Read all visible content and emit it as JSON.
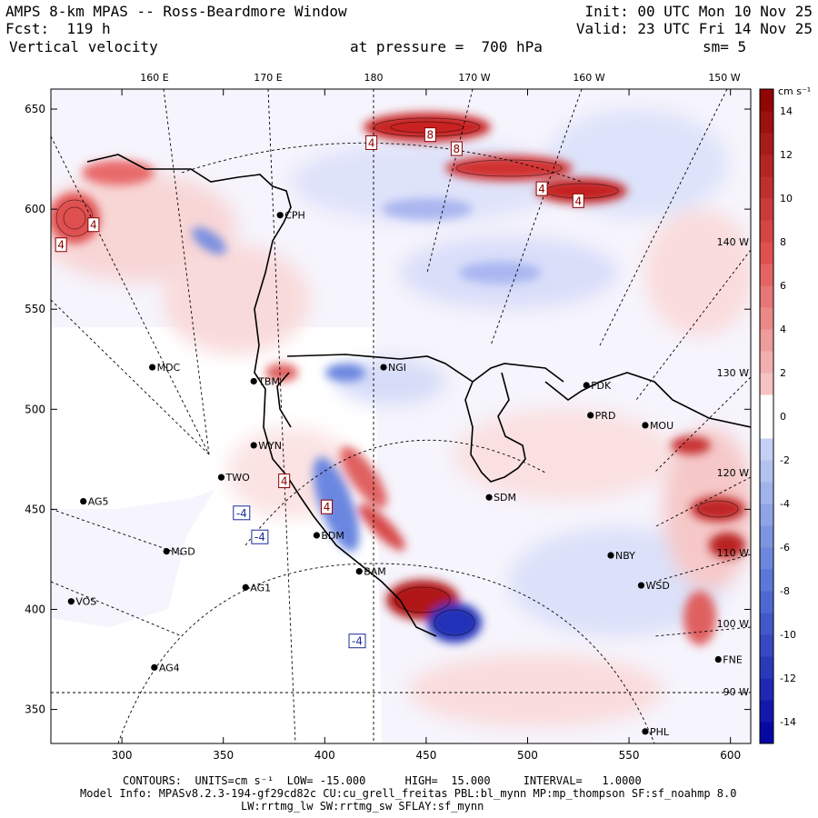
{
  "header": {
    "model_title": "AMPS 8-km MPAS -- Ross-Beardmore Window",
    "forecast": "Fcst:  119 h",
    "variable": "Vertical velocity",
    "init": "Init: 00 UTC Mon 10 Nov 25",
    "valid": "Valid: 23 UTC Fri 14 Nov 25",
    "pressure": "at pressure =  700 hPa",
    "smoothing": "sm= 5"
  },
  "footer": {
    "contours": "CONTOURS:  UNITS=cm s⁻¹  LOW= -15.000      HIGH=  15.000     INTERVAL=   1.0000",
    "model_info": "Model Info: MPASv8.2.3-194-gf29cd82c CU:cu_grell_freitas PBL:bl_mynn MP:mp_thompson SF:sf_noahmp 8.0",
    "physics": "LW:rrtmg_lw SW:rrtmg_sw SFLAY:sf_mynn"
  },
  "colors": {
    "neg_strong": "#0000a0",
    "neg_mid": "#5a78d8",
    "neg_light": "#dfe6fb",
    "zero": "#ffffff",
    "pos_light": "#fbdede",
    "pos_mid": "#e05050",
    "pos_strong": "#8b0000"
  },
  "chart_data": {
    "type": "heatmap",
    "title": "Vertical velocity at 700 hPa",
    "units": "cm s⁻¹",
    "x_axis": {
      "range": [
        265,
        610
      ],
      "ticks": [
        300,
        350,
        400,
        450,
        500,
        550,
        600
      ]
    },
    "y_axis": {
      "range": [
        333,
        660
      ],
      "ticks": [
        350,
        400,
        450,
        500,
        550,
        600,
        650
      ]
    },
    "top_longitude_labels": [
      "160 E",
      "170 E",
      "180",
      "170 W",
      "160 W",
      "150 W"
    ],
    "right_longitude_labels": [
      "140 W",
      "130 W",
      "120 W",
      "110 W",
      "100 W",
      "90 W"
    ],
    "colorbar": {
      "unit_label": "cm s⁻¹",
      "range": [
        -15,
        15
      ],
      "labels": [
        14,
        12,
        10,
        8,
        6,
        4,
        2,
        0,
        -2,
        -4,
        -6,
        -8,
        -10,
        -12,
        -14
      ]
    },
    "contours": {
      "low": -15.0,
      "high": 15.0,
      "interval": 1.0
    },
    "stations": [
      {
        "name": "CPH",
        "x": 378,
        "y": 597
      },
      {
        "name": "MDC",
        "x": 315,
        "y": 521
      },
      {
        "name": "TBM",
        "x": 365,
        "y": 514
      },
      {
        "name": "NGI",
        "x": 429,
        "y": 521
      },
      {
        "name": "FDK",
        "x": 529,
        "y": 512
      },
      {
        "name": "PRD",
        "x": 531,
        "y": 497
      },
      {
        "name": "MOU",
        "x": 558,
        "y": 492
      },
      {
        "name": "WYN",
        "x": 365,
        "y": 482
      },
      {
        "name": "TWO",
        "x": 349,
        "y": 466
      },
      {
        "name": "AG5",
        "x": 281,
        "y": 454
      },
      {
        "name": "SDM",
        "x": 481,
        "y": 456
      },
      {
        "name": "BDM",
        "x": 396,
        "y": 437
      },
      {
        "name": "MGD",
        "x": 322,
        "y": 429
      },
      {
        "name": "NBY",
        "x": 541,
        "y": 427
      },
      {
        "name": "BAM",
        "x": 417,
        "y": 419
      },
      {
        "name": "AG1",
        "x": 361,
        "y": 411
      },
      {
        "name": "WSD",
        "x": 556,
        "y": 412
      },
      {
        "name": "VOS",
        "x": 275,
        "y": 404
      },
      {
        "name": "AG4",
        "x": 316,
        "y": 371
      },
      {
        "name": "FNE",
        "x": 594,
        "y": 375
      },
      {
        "name": "PHL",
        "x": 558,
        "y": 339
      }
    ],
    "high_low_labels": [
      {
        "text": "4",
        "x": 286,
        "y": 592,
        "sign": "pos"
      },
      {
        "text": "4",
        "x": 270,
        "y": 582,
        "sign": "pos"
      },
      {
        "text": "4",
        "x": 423,
        "y": 633,
        "sign": "pos"
      },
      {
        "text": "8",
        "x": 452,
        "y": 637,
        "sign": "pos"
      },
      {
        "text": "8",
        "x": 465,
        "y": 630,
        "sign": "pos"
      },
      {
        "text": "4",
        "x": 507,
        "y": 610,
        "sign": "pos"
      },
      {
        "text": "4",
        "x": 525,
        "y": 604,
        "sign": "pos"
      },
      {
        "text": "4",
        "x": 380,
        "y": 464,
        "sign": "pos"
      },
      {
        "text": "4",
        "x": 401,
        "y": 451,
        "sign": "pos"
      },
      {
        "text": "-4",
        "x": 359,
        "y": 448,
        "sign": "neg"
      },
      {
        "text": "-4",
        "x": 368,
        "y": 436,
        "sign": "neg"
      },
      {
        "text": "-4",
        "x": 416,
        "y": 384,
        "sign": "neg"
      }
    ]
  }
}
